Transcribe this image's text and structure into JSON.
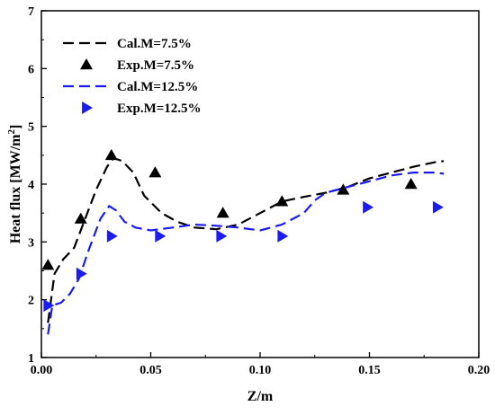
{
  "chart_data": {
    "type": "line",
    "title": "",
    "xlabel": "Z/m",
    "ylabel_main": "Heat flux [MW/m",
    "ylabel_sup": "2",
    "ylabel_end": "]",
    "xlim": [
      0.0,
      0.2
    ],
    "ylim": [
      1,
      7
    ],
    "xticks": [
      "0.00",
      "0.05",
      "0.10",
      "0.15",
      "0.20"
    ],
    "yticks": [
      "1",
      "2",
      "3",
      "4",
      "5",
      "6",
      "7"
    ],
    "grid": false,
    "legend_position": "top-left",
    "series": [
      {
        "name": "Cal.M=7.5%",
        "kind": "line",
        "style": "dashed",
        "color": "#000000",
        "x": [
          0.003,
          0.006,
          0.01,
          0.015,
          0.02,
          0.025,
          0.03,
          0.033,
          0.037,
          0.042,
          0.047,
          0.055,
          0.062,
          0.07,
          0.08,
          0.09,
          0.1,
          0.11,
          0.12,
          0.13,
          0.14,
          0.15,
          0.16,
          0.17,
          0.18,
          0.184
        ],
        "y": [
          1.6,
          2.45,
          2.7,
          2.9,
          3.4,
          3.9,
          4.3,
          4.45,
          4.4,
          4.2,
          3.8,
          3.5,
          3.35,
          3.25,
          3.22,
          3.3,
          3.5,
          3.7,
          3.78,
          3.85,
          3.95,
          4.1,
          4.2,
          4.3,
          4.38,
          4.4
        ]
      },
      {
        "name": "Exp.M=7.5%",
        "kind": "scatter",
        "marker": "triangle-up",
        "color": "#000000",
        "x": [
          0.003,
          0.018,
          0.032,
          0.052,
          0.083,
          0.11,
          0.138,
          0.169
        ],
        "y": [
          2.6,
          3.4,
          4.5,
          4.2,
          3.5,
          3.7,
          3.9,
          4.0
        ]
      },
      {
        "name": "Cal.M=12.5%",
        "kind": "line",
        "style": "dashed",
        "color": "#1a1aff",
        "x": [
          0.003,
          0.005,
          0.009,
          0.013,
          0.017,
          0.022,
          0.027,
          0.031,
          0.034,
          0.038,
          0.043,
          0.05,
          0.06,
          0.07,
          0.08,
          0.09,
          0.1,
          0.11,
          0.12,
          0.125,
          0.13,
          0.14,
          0.15,
          0.16,
          0.17,
          0.18,
          0.184
        ],
        "y": [
          1.4,
          1.9,
          1.95,
          2.1,
          2.35,
          2.9,
          3.4,
          3.62,
          3.55,
          3.35,
          3.25,
          3.2,
          3.25,
          3.3,
          3.28,
          3.25,
          3.2,
          3.3,
          3.5,
          3.72,
          3.85,
          3.95,
          4.05,
          4.15,
          4.2,
          4.2,
          4.18
        ]
      },
      {
        "name": "Exp.M=12.5%",
        "kind": "scatter",
        "marker": "triangle-right",
        "color": "#1a1aff",
        "x": [
          0.003,
          0.018,
          0.032,
          0.054,
          0.082,
          0.11,
          0.149,
          0.181
        ],
        "y": [
          1.9,
          2.45,
          3.1,
          3.1,
          3.1,
          3.1,
          3.6,
          3.6
        ]
      }
    ]
  }
}
